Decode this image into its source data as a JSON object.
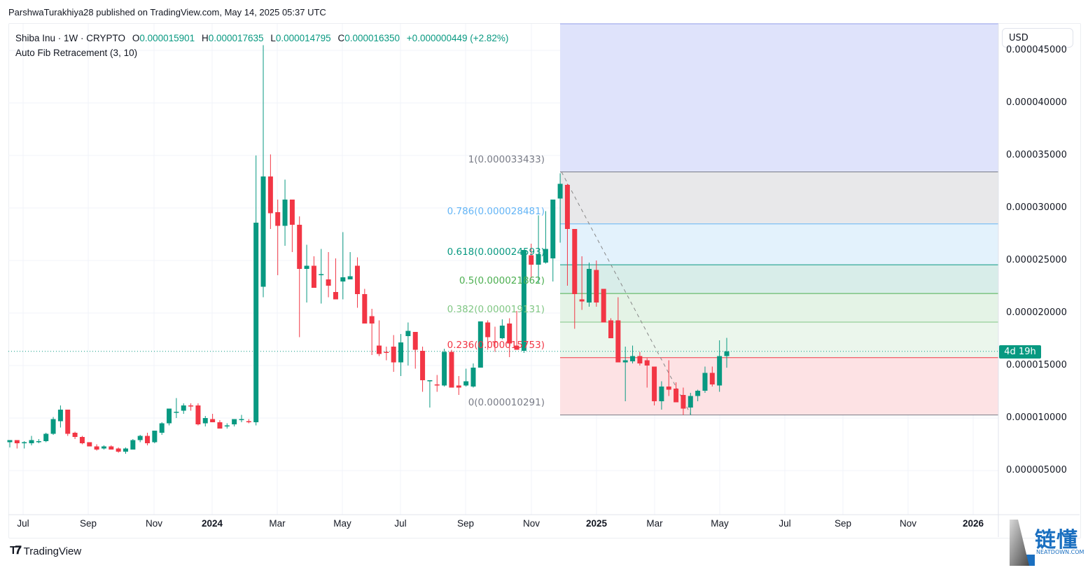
{
  "header": {
    "published": "ParshwaTurakhiya28 published on TradingView.com, May 14, 2025 05:37 UTC"
  },
  "legend": {
    "symbol": "Shiba Inu · 1W · CRYPTO",
    "o_label": "O",
    "o_value": "0.000015901",
    "h_label": "H",
    "h_value": "0.000017635",
    "l_label": "L",
    "l_value": "0.000014795",
    "c_label": "C",
    "c_value": "0.000016350",
    "change": "+0.000000449 (+2.82%)",
    "indicator": "Auto Fib Retracement (3, 10)"
  },
  "currency_button": "USD",
  "countdown": "4d 19h",
  "colors": {
    "up": "#089981",
    "down": "#f23645",
    "grid": "#f0f3fa",
    "fib_extension_zone": "#dfe3fb",
    "fib_1_0786_zone": "#e8e8ea",
    "fib_0786_0618_zone": "#e3f2fc",
    "fib_0618_05_zone": "#d8ede9",
    "fib_05_0382_zone": "#e4f3e6",
    "fib_0382_0236_zone": "#ebf6ec",
    "fib_0236_0_zone": "#fde2e4"
  },
  "y_axis": {
    "labels": [
      "0.000045000",
      "0.000040000",
      "0.000035000",
      "0.000030000",
      "0.000025000",
      "0.000020000",
      "0.000015000",
      "0.000010000",
      "0.000005000"
    ]
  },
  "x_axis": {
    "labels": [
      {
        "text": "Jul",
        "x": 33,
        "bold": false
      },
      {
        "text": "Sep",
        "x": 126,
        "bold": false
      },
      {
        "text": "Nov",
        "x": 220,
        "bold": false
      },
      {
        "text": "2024",
        "x": 303,
        "bold": true
      },
      {
        "text": "Mar",
        "x": 396,
        "bold": false
      },
      {
        "text": "May",
        "x": 489,
        "bold": false
      },
      {
        "text": "Jul",
        "x": 572,
        "bold": false
      },
      {
        "text": "Sep",
        "x": 665,
        "bold": false
      },
      {
        "text": "Nov",
        "x": 759,
        "bold": false
      },
      {
        "text": "2025",
        "x": 852,
        "bold": true
      },
      {
        "text": "Mar",
        "x": 935,
        "bold": false
      },
      {
        "text": "May",
        "x": 1028,
        "bold": false
      },
      {
        "text": "Jul",
        "x": 1121,
        "bold": false
      },
      {
        "text": "Sep",
        "x": 1204,
        "bold": false
      },
      {
        "text": "Nov",
        "x": 1297,
        "bold": false
      },
      {
        "text": "2026",
        "x": 1390,
        "bold": true
      }
    ]
  },
  "fib_levels": [
    {
      "label": "1(0.000033433)",
      "ratio": 1,
      "price": 33.433,
      "color": "#787b86"
    },
    {
      "label": "0.786(0.000028481)",
      "ratio": 0.786,
      "price": 28.481,
      "color": "#64b5f6"
    },
    {
      "label": "0.618(0.000024593)",
      "ratio": 0.618,
      "price": 24.593,
      "color": "#089981"
    },
    {
      "label": "0.5(0.000021862)",
      "ratio": 0.5,
      "price": 21.862,
      "color": "#4caf50"
    },
    {
      "label": "0.382(0.000019131)",
      "ratio": 0.382,
      "price": 19.131,
      "color": "#81c784"
    },
    {
      "label": "0.236(0.000015753)",
      "ratio": 0.236,
      "price": 15.753,
      "color": "#f23645"
    },
    {
      "label": "0(0.000010291)",
      "ratio": 0,
      "price": 10.291,
      "color": "#787b86"
    }
  ],
  "branding": {
    "tradingview": "TradingView",
    "watermark_cn": "链懂",
    "watermark_en": "NEATDOWN.COM"
  },
  "chart_data": {
    "type": "candlestick",
    "title": "Shiba Inu · 1W · CRYPTO",
    "ylabel": "USD",
    "price_unit": "1e-6 USD",
    "ylim": [
      0,
      47
    ],
    "x_range": [
      "2023-06",
      "2026-01"
    ],
    "last_price": 16.35,
    "fib_anchor_high": 33.433,
    "fib_anchor_low": 10.291,
    "candles": [
      [
        7.7,
        7.9,
        7.2,
        7.9
      ],
      [
        7.9,
        7.9,
        7.1,
        7.6
      ],
      [
        7.6,
        7.8,
        7.1,
        7.7
      ],
      [
        7.6,
        8.3,
        7.4,
        7.9
      ],
      [
        7.8,
        8.0,
        7.6,
        7.8
      ],
      [
        7.8,
        8.6,
        7.7,
        8.5
      ],
      [
        8.5,
        10.1,
        8.4,
        9.9
      ],
      [
        9.7,
        11.2,
        9.1,
        10.8
      ],
      [
        10.8,
        10.2,
        8.3,
        8.5
      ],
      [
        8.6,
        8.7,
        8.0,
        8.2
      ],
      [
        8.2,
        8.3,
        7.5,
        7.6
      ],
      [
        7.7,
        7.6,
        7.3,
        7.3
      ],
      [
        7.3,
        7.5,
        6.9,
        7.0
      ],
      [
        7.1,
        7.4,
        7.0,
        7.3
      ],
      [
        7.3,
        7.4,
        7.1,
        7.0
      ],
      [
        7.1,
        7.2,
        6.7,
        6.8
      ],
      [
        6.8,
        7.2,
        6.6,
        7.1
      ],
      [
        7.0,
        8.0,
        7.0,
        7.9
      ],
      [
        7.9,
        8.4,
        7.7,
        8.3
      ],
      [
        8.3,
        8.6,
        7.4,
        7.6
      ],
      [
        7.7,
        8.8,
        7.6,
        8.8
      ],
      [
        8.6,
        9.6,
        8.4,
        9.5
      ],
      [
        9.5,
        10.8,
        9.3,
        10.9
      ],
      [
        10.6,
        11.9,
        10.0,
        10.6
      ],
      [
        10.7,
        11.4,
        10.4,
        11.2
      ],
      [
        11.2,
        11.4,
        10.7,
        11.1
      ],
      [
        11.2,
        11.4,
        9.3,
        9.4
      ],
      [
        9.5,
        10.2,
        9.2,
        10.0
      ],
      [
        9.9,
        10.4,
        9.7,
        9.6
      ],
      [
        9.6,
        9.8,
        9.0,
        9.0
      ],
      [
        9.2,
        9.5,
        9.0,
        9.3
      ],
      [
        9.4,
        9.9,
        9.2,
        9.9
      ],
      [
        9.8,
        10.3,
        9.6,
        9.9
      ],
      [
        9.7,
        9.9,
        9.5,
        9.6
      ],
      [
        9.6,
        35.0,
        9.3,
        28.6
      ],
      [
        22.5,
        45.5,
        21.5,
        33.0
      ],
      [
        33.0,
        35.1,
        28.0,
        29.5
      ],
      [
        29.6,
        30.8,
        23.6,
        28.3
      ],
      [
        28.3,
        32.7,
        26.4,
        30.8
      ],
      [
        30.8,
        29.6,
        25.8,
        28.4
      ],
      [
        28.4,
        29.2,
        17.7,
        24.2
      ],
      [
        24.2,
        26.5,
        21.0,
        24.5
      ],
      [
        24.5,
        25.4,
        22.5,
        22.4
      ],
      [
        23.6,
        26.1,
        20.9,
        23.7
      ],
      [
        23.2,
        25.8,
        21.5,
        22.6
      ],
      [
        22.0,
        25.2,
        21.5,
        21.3
      ],
      [
        23.0,
        27.7,
        21.3,
        23.4
      ],
      [
        23.2,
        25.8,
        23.7,
        23.5
      ],
      [
        24.5,
        25.3,
        20.5,
        21.8
      ],
      [
        21.8,
        22.3,
        19.5,
        19.0
      ],
      [
        19.7,
        20.4,
        16.0,
        19.0
      ],
      [
        16.9,
        19.3,
        15.9,
        16.1
      ],
      [
        16.3,
        16.8,
        15.5,
        16.2
      ],
      [
        16.8,
        17.9,
        14.4,
        15.3
      ],
      [
        15.3,
        18.0,
        14.0,
        17.2
      ],
      [
        17.8,
        19.1,
        15.0,
        18.3
      ],
      [
        18.2,
        17.8,
        14.7,
        16.5
      ],
      [
        16.4,
        16.8,
        12.5,
        13.6
      ],
      [
        13.6,
        13.6,
        11.0,
        13.6
      ],
      [
        13.2,
        14.1,
        12.5,
        13.1
      ],
      [
        13.1,
        16.6,
        13.0,
        16.3
      ],
      [
        16.3,
        16.5,
        13.0,
        12.9
      ],
      [
        13.1,
        14.0,
        12.2,
        12.9
      ],
      [
        13.1,
        14.7,
        13.0,
        13.5
      ],
      [
        13.0,
        15.2,
        12.9,
        14.8
      ],
      [
        14.8,
        18.8,
        14.9,
        19.2
      ],
      [
        19.1,
        19.3,
        16.5,
        17.7
      ],
      [
        17.3,
        18.7,
        16.3,
        17.2
      ],
      [
        17.6,
        19.4,
        17.5,
        18.8
      ],
      [
        19.0,
        19.5,
        15.8,
        17.1
      ],
      [
        16.9,
        20.2,
        16.6,
        16.5
      ],
      [
        16.4,
        20.6,
        16.2,
        26.0
      ],
      [
        25.5,
        26.6,
        23.3,
        24.6
      ],
      [
        24.6,
        29.3,
        22.8,
        25.6
      ],
      [
        24.8,
        29.7,
        24.7,
        26.1
      ],
      [
        25.2,
        30.7,
        23.0,
        30.8
      ],
      [
        30.9,
        33.3,
        26.7,
        32.3
      ],
      [
        32.2,
        32.3,
        22.6,
        28.0
      ],
      [
        28.0,
        27.8,
        18.5,
        21.8
      ],
      [
        21.3,
        25.4,
        20.3,
        21.1
      ],
      [
        21.0,
        24.8,
        20.6,
        24.2
      ],
      [
        24.1,
        25.0,
        20.6,
        21.0
      ],
      [
        22.3,
        22.0,
        19.9,
        19.1
      ],
      [
        19.3,
        19.5,
        18.0,
        17.6
      ],
      [
        19.3,
        21.5,
        16.3,
        15.3
      ],
      [
        15.3,
        16.8,
        11.6,
        15.5
      ],
      [
        15.4,
        16.9,
        15.2,
        15.9
      ],
      [
        15.9,
        16.3,
        15.0,
        15.2
      ],
      [
        15.5,
        15.7,
        12.9,
        15.0
      ],
      [
        14.9,
        14.5,
        11.2,
        11.6
      ],
      [
        11.6,
        13.5,
        10.8,
        13.0
      ],
      [
        13.0,
        15.5,
        12.1,
        12.7
      ],
      [
        12.8,
        13.4,
        12.0,
        11.5
      ],
      [
        12.2,
        12.9,
        10.3,
        10.9
      ],
      [
        11.0,
        12.4,
        10.3,
        12.1
      ],
      [
        12.1,
        12.7,
        11.6,
        12.6
      ],
      [
        12.6,
        14.9,
        12.4,
        14.3
      ],
      [
        14.3,
        14.9,
        13.0,
        13.2
      ],
      [
        13.1,
        17.4,
        12.5,
        15.9
      ],
      [
        15.9,
        17.635,
        14.795,
        16.35
      ]
    ]
  }
}
